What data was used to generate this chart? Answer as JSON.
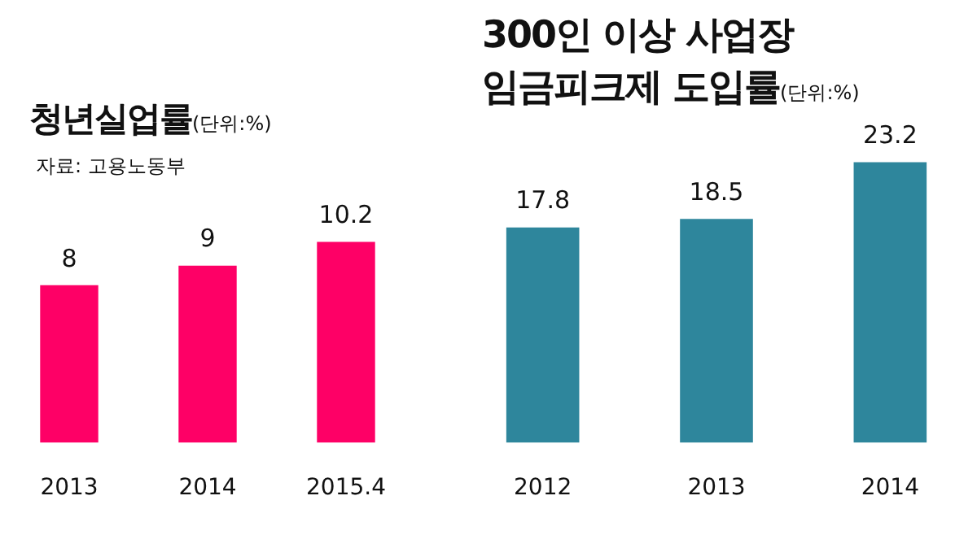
{
  "chart_data": [
    {
      "type": "bar",
      "title": "청년실업률",
      "subtitle": "(단위:%)",
      "annotations": [
        "자료: 고용노동부"
      ],
      "categories": [
        "2013",
        "2014",
        "2015.4"
      ],
      "values": [
        8,
        9,
        10.2
      ],
      "color": "#fe0066",
      "data_labels": true
    },
    {
      "type": "bar",
      "title": "300인 이상 사업장\n임금피크제 도입률",
      "subtitle": "(단위:%)",
      "categories": [
        "2012",
        "2013",
        "2014"
      ],
      "values": [
        17.8,
        18.5,
        23.2
      ],
      "color": "#2e869c",
      "data_labels": true
    }
  ]
}
